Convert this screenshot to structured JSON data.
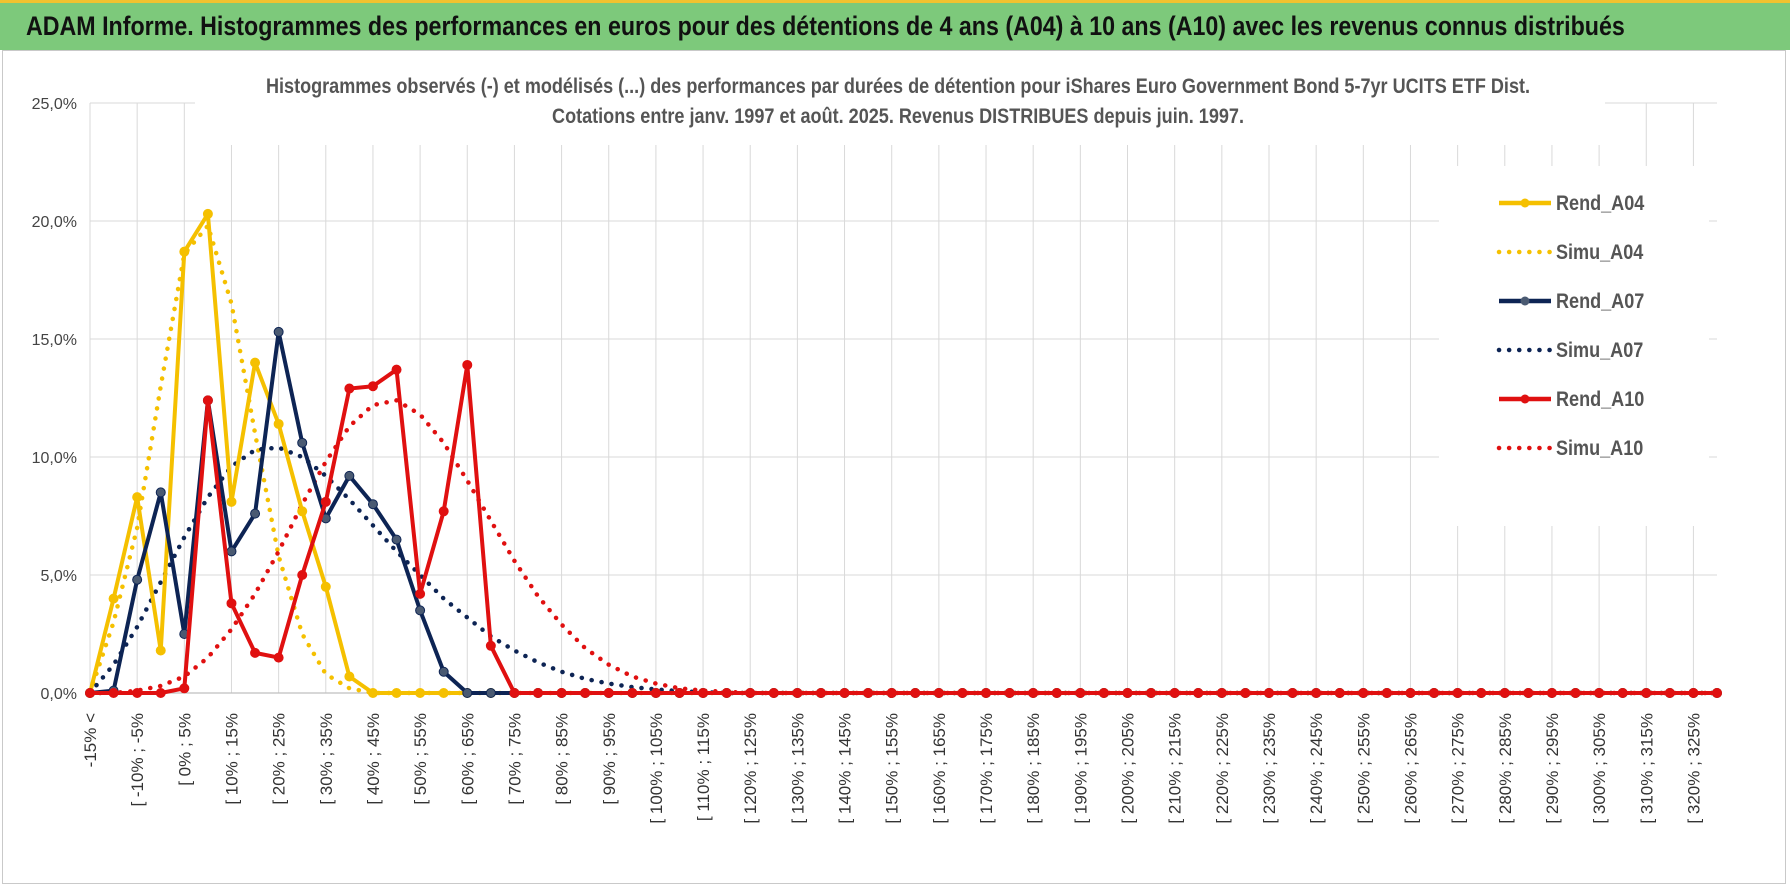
{
  "header": {
    "title": "ADAM Informe. Histogrammes des performances en euros pour des détentions de 4 ans (A04) à 10 ans (A10) avec les revenus connus distribués"
  },
  "chart_data": {
    "type": "line",
    "title_lines": [
      "Histogrammes observés (-) et modélisés (...) des performances par durées de détention pour iShares Euro Government Bond 5-7yr UCITS ETF Dist.",
      "Cotations entre janv. 1997 et août. 2025. Revenus DISTRIBUES depuis juin. 1997."
    ],
    "xlabel": "",
    "ylabel": "",
    "ylim": [
      0,
      25
    ],
    "y_ticks": [
      "0,0%",
      "5,0%",
      "10,0%",
      "15,0%",
      "20,0%",
      "25,0%"
    ],
    "grid": true,
    "legend_position": "right",
    "x_labels": [
      "-15% <",
      "[ -10% ; -5%",
      "[ 0% ; 5%",
      "[ 10% ; 15%",
      "[ 20% ; 25%",
      "[ 30% ; 35%",
      "[ 40% ; 45%",
      "[ 50% ; 55%",
      "[ 60% ; 65%",
      "[ 70% ; 75%",
      "[ 80% ; 85%",
      "[ 90% ; 95%",
      "[ 100% ; 105%",
      "[ 110% ; 115%",
      "[ 120% ; 125%",
      "[ 130% ; 135%",
      "[ 140% ; 145%",
      "[ 150% ; 155%",
      "[ 160% ; 165%",
      "[ 170% ; 175%",
      "[ 180% ; 185%",
      "[ 190% ; 195%",
      "[ 200% ; 205%",
      "[ 210% ; 215%",
      "[ 220% ; 225%",
      "[ 230% ; 235%",
      "[ 240% ; 245%",
      "[ 250% ; 255%",
      "[ 260% ; 265%",
      "[ 270% ; 275%",
      "[ 280% ; 285%",
      "[ 290% ; 295%",
      "[ 300% ; 305%",
      "[ 310% ; 315%",
      "[ 320% ; 325%"
    ],
    "bins_count": 70,
    "series": [
      {
        "name": "Rend_A04",
        "color": "#f5c000",
        "style": "solid",
        "markers": true,
        "values": [
          0.0,
          4.0,
          8.3,
          1.8,
          18.7,
          20.3,
          8.1,
          14.0,
          11.4,
          7.7,
          4.5,
          0.7,
          0.0,
          0.0,
          0.0
        ]
      },
      {
        "name": "Simu_A04",
        "color": "#f5c000",
        "style": "dotted",
        "markers": false,
        "values": [
          0.0,
          3.0,
          7.0,
          13.0,
          18.6,
          19.8,
          16.5,
          11.0,
          5.8,
          2.5,
          0.8,
          0.2,
          0.0,
          0.0,
          0.0
        ]
      },
      {
        "name": "Rend_A07",
        "color": "#0d2454",
        "style": "solid",
        "markers": true,
        "values": [
          0.0,
          0.1,
          4.8,
          8.5,
          2.5,
          12.4,
          6.0,
          7.6,
          15.3,
          10.6,
          7.4,
          9.2,
          8.0,
          6.5,
          3.5,
          0.9,
          0.0,
          0.0,
          0.0
        ]
      },
      {
        "name": "Simu_A07",
        "color": "#0d2454",
        "style": "dotted",
        "markers": false,
        "values": [
          0.0,
          1.2,
          2.8,
          4.7,
          6.6,
          8.3,
          9.6,
          10.3,
          10.4,
          10.0,
          9.2,
          8.2,
          7.1,
          6.0,
          5.0,
          4.0,
          3.2,
          2.4,
          1.8,
          1.3,
          0.9,
          0.6,
          0.4,
          0.25,
          0.15,
          0.08,
          0.03,
          0.0
        ]
      },
      {
        "name": "Rend_A10",
        "color": "#e01010",
        "style": "solid",
        "markers": true,
        "values": [
          0.0,
          0.0,
          0.0,
          0.0,
          0.2,
          12.4,
          3.8,
          1.7,
          1.5,
          5.0,
          8.1,
          12.9,
          13.0,
          13.7,
          4.2,
          7.7,
          13.9,
          2.0,
          0.0
        ]
      },
      {
        "name": "Simu_A10",
        "color": "#e01010",
        "style": "dotted",
        "markers": false,
        "values": [
          0.0,
          0.0,
          0.1,
          0.3,
          0.7,
          1.5,
          2.7,
          4.2,
          6.0,
          8.0,
          9.8,
          11.3,
          12.2,
          12.4,
          11.8,
          10.6,
          9.0,
          7.3,
          5.6,
          4.1,
          2.9,
          1.9,
          1.2,
          0.7,
          0.4,
          0.2,
          0.1,
          0.05,
          0.0
        ]
      }
    ]
  }
}
